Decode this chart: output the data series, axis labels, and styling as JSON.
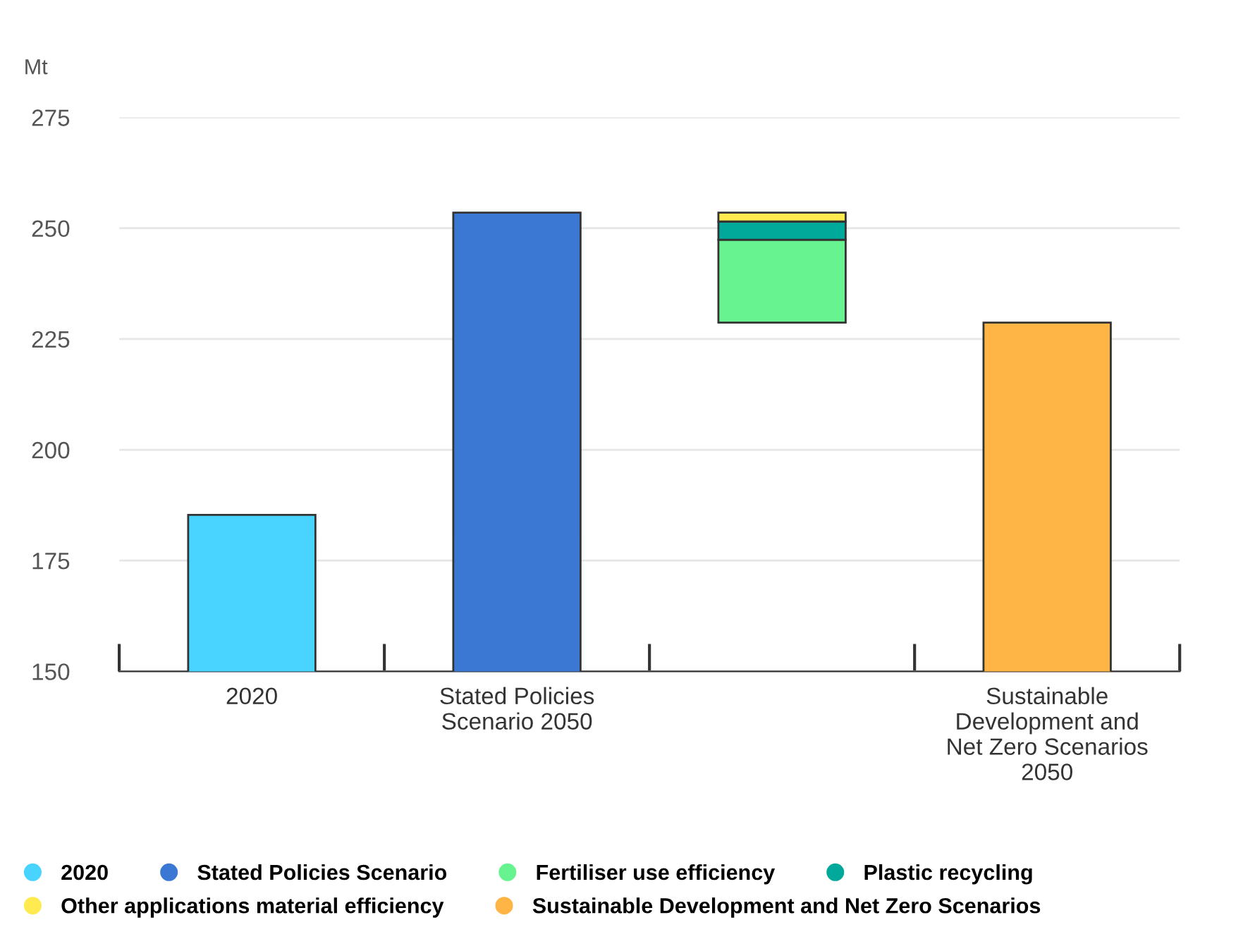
{
  "chart_data": {
    "type": "bar",
    "ylabel": "Mt",
    "categories": [
      "2020",
      "Stated Policies\nScenario 2050",
      null,
      "Sustainable\nDevelopment and\nNet Zero Scenarios\n2050"
    ],
    "series": [
      {
        "name": "2020",
        "color": "#48d4ff",
        "values": [
          185.3,
          null,
          null,
          null
        ]
      },
      {
        "name": "Stated Policies Scenario",
        "color": "#3b78d4",
        "values": [
          null,
          253.5,
          null,
          null
        ]
      },
      {
        "name": "Fertiliser use efficiency",
        "color": "#66f390",
        "base": [
          null,
          null,
          228.7,
          null
        ],
        "values": [
          null,
          null,
          18.7,
          null
        ]
      },
      {
        "name": "Plastic recycling",
        "color": "#00a99a",
        "base": [
          null,
          null,
          247.4,
          null
        ],
        "values": [
          null,
          null,
          4.1,
          null
        ]
      },
      {
        "name": "Other applications material efficiency",
        "color": "#ffea4f",
        "base": [
          null,
          null,
          251.5,
          null
        ],
        "values": [
          null,
          null,
          2.0,
          null
        ]
      },
      {
        "name": "Sustainable Development and Net Zero Scenarios",
        "color": "#ffb446",
        "values": [
          null,
          null,
          null,
          228.7
        ]
      }
    ],
    "ylim": [
      150,
      275
    ],
    "yticks": [
      150,
      175,
      200,
      225,
      250,
      275
    ],
    "grid": "y",
    "legend": "bottom"
  }
}
